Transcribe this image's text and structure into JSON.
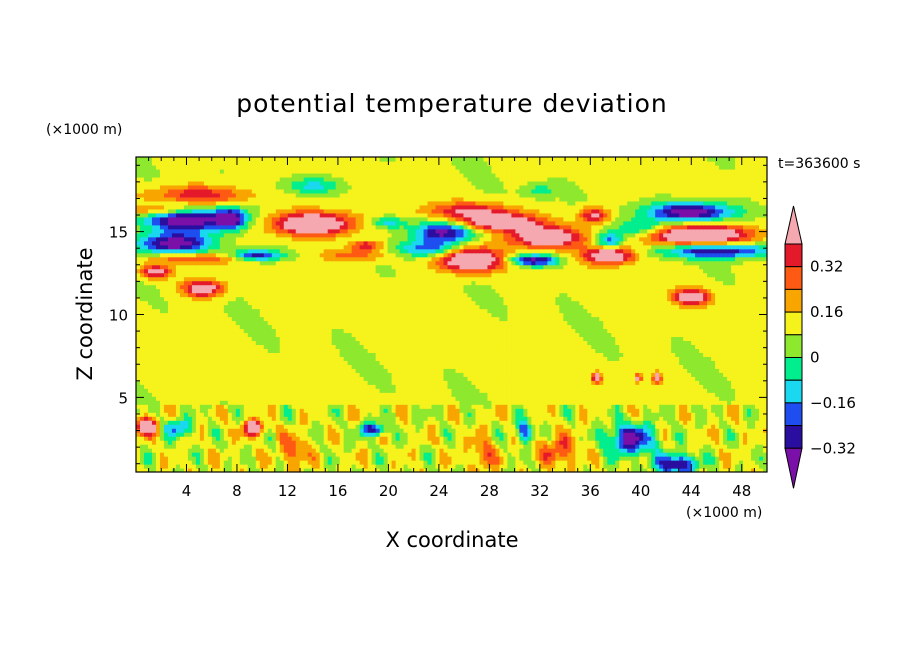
{
  "chart_data": {
    "type": "heatmap",
    "title": "potential temperature deviation",
    "xlabel": "X coordinate",
    "ylabel": "Z coordinate",
    "x_units": "(×1000 m)",
    "y_units": "(×1000 m)",
    "time_label": "t=363600 s",
    "xlim": [
      0,
      50
    ],
    "ylim": [
      0.5,
      19.5
    ],
    "x_ticks": [
      4,
      8,
      12,
      16,
      20,
      24,
      28,
      32,
      36,
      40,
      44,
      48
    ],
    "y_ticks": [
      5,
      10,
      15
    ],
    "colorbar": {
      "levels": [
        -0.4,
        -0.32,
        -0.24,
        -0.16,
        -0.08,
        0,
        0.08,
        0.16,
        0.24,
        0.32,
        0.4
      ],
      "labeled_ticks": [
        "0.32",
        "0.16",
        "0",
        "−0.16",
        "−0.32"
      ],
      "labeled_values": [
        0.32,
        0.16,
        0,
        -0.16,
        -0.32
      ],
      "colors": [
        "#7a10a8",
        "#2a0ea0",
        "#1e4ef0",
        "#19d8f0",
        "#00ee8e",
        "#8ee82e",
        "#f5f21c",
        "#f8a500",
        "#ff5a14",
        "#e4192a",
        "#f5a8b0"
      ]
    },
    "background_value": 0.02,
    "features": [
      {
        "x": 4,
        "z": 15.8,
        "sx": 3.5,
        "sz": 0.8,
        "v": -0.55
      },
      {
        "x": 3,
        "z": 14.3,
        "sx": 3.0,
        "sz": 0.6,
        "v": -0.5
      },
      {
        "x": 5,
        "z": 17.2,
        "sx": 4.0,
        "sz": 0.6,
        "v": 0.3
      },
      {
        "x": 2.5,
        "z": 16.3,
        "sx": 3.0,
        "sz": 0.35,
        "v": 0.3
      },
      {
        "x": 1.5,
        "z": 12.6,
        "sx": 1.2,
        "sz": 0.4,
        "v": 0.4
      },
      {
        "x": 5.3,
        "z": 11.6,
        "sx": 1.6,
        "sz": 0.5,
        "v": 0.45
      },
      {
        "x": 4.8,
        "z": 13.4,
        "sx": 3.5,
        "sz": 0.3,
        "v": 0.25
      },
      {
        "x": 7.5,
        "z": 15.8,
        "sx": 1.2,
        "sz": 0.6,
        "v": -0.4
      },
      {
        "x": 9.5,
        "z": 13.6,
        "sx": 2.0,
        "sz": 0.35,
        "v": -0.4
      },
      {
        "x": 14,
        "z": 15.5,
        "sx": 3.2,
        "sz": 0.7,
        "v": 0.55
      },
      {
        "x": 14,
        "z": 17.8,
        "sx": 2.5,
        "sz": 0.5,
        "v": -0.2
      },
      {
        "x": 17.5,
        "z": 13.6,
        "sx": 2.5,
        "sz": 0.4,
        "v": 0.2
      },
      {
        "x": 20,
        "z": 15.6,
        "sx": 1.4,
        "sz": 0.35,
        "v": -0.25
      },
      {
        "x": 18.3,
        "z": 14.2,
        "sx": 1.2,
        "sz": 0.3,
        "v": 0.3
      },
      {
        "x": 23,
        "z": 14.0,
        "sx": 2.5,
        "sz": 0.5,
        "v": -0.3
      },
      {
        "x": 26.5,
        "z": 16.3,
        "sx": 3.5,
        "sz": 0.5,
        "v": 0.28
      },
      {
        "x": 24.5,
        "z": 15.0,
        "sx": 2.5,
        "sz": 0.6,
        "v": -0.45
      },
      {
        "x": 26.5,
        "z": 13.3,
        "sx": 2.5,
        "sz": 0.7,
        "v": 0.55
      },
      {
        "x": 29,
        "z": 15.6,
        "sx": 3.0,
        "sz": 0.5,
        "v": 0.5
      },
      {
        "x": 31.5,
        "z": 13.3,
        "sx": 2.0,
        "sz": 0.35,
        "v": -0.45
      },
      {
        "x": 32.5,
        "z": 14.7,
        "sx": 2.8,
        "sz": 0.6,
        "v": 0.5
      },
      {
        "x": 32,
        "z": 17.5,
        "sx": 1.2,
        "sz": 0.4,
        "v": -0.15
      },
      {
        "x": 36.3,
        "z": 16.0,
        "sx": 1.2,
        "sz": 0.5,
        "v": 0.35
      },
      {
        "x": 37.5,
        "z": 14.5,
        "sx": 1.0,
        "sz": 0.5,
        "v": -0.3
      },
      {
        "x": 37.5,
        "z": 13.6,
        "sx": 2.0,
        "sz": 0.5,
        "v": 0.5
      },
      {
        "x": 40,
        "z": 15.2,
        "sx": 1.8,
        "sz": 0.5,
        "v": -0.25
      },
      {
        "x": 44,
        "z": 16.2,
        "sx": 3.5,
        "sz": 0.6,
        "v": -0.5
      },
      {
        "x": 44.5,
        "z": 14.8,
        "sx": 4.0,
        "sz": 0.65,
        "v": 0.55
      },
      {
        "x": 46,
        "z": 13.9,
        "sx": 4.5,
        "sz": 0.45,
        "v": -0.45
      },
      {
        "x": 44,
        "z": 11.1,
        "sx": 1.4,
        "sz": 0.45,
        "v": 0.45
      },
      {
        "x": 36.5,
        "z": 6.2,
        "sx": 0.35,
        "sz": 0.3,
        "v": 0.45
      },
      {
        "x": 39.8,
        "z": 6.2,
        "sx": 0.25,
        "sz": 0.25,
        "v": 0.4
      },
      {
        "x": 41.3,
        "z": 6.2,
        "sx": 0.3,
        "sz": 0.3,
        "v": 0.45
      },
      {
        "x": 0.8,
        "z": 3.3,
        "sx": 0.8,
        "sz": 0.5,
        "v": 0.55
      },
      {
        "x": 3.3,
        "z": 3.2,
        "sx": 1.0,
        "sz": 0.5,
        "v": -0.3
      },
      {
        "x": 9.3,
        "z": 3.2,
        "sx": 0.8,
        "sz": 0.45,
        "v": 0.5
      },
      {
        "x": 18.8,
        "z": 3.1,
        "sx": 1.0,
        "sz": 0.4,
        "v": -0.4
      },
      {
        "x": 30.8,
        "z": 3.0,
        "sx": 0.6,
        "sz": 0.6,
        "v": -0.35
      },
      {
        "x": 39.2,
        "z": 2.5,
        "sx": 1.8,
        "sz": 0.9,
        "v": -0.45
      },
      {
        "x": 42.8,
        "z": 1.0,
        "sx": 1.6,
        "sz": 0.6,
        "v": -0.45
      },
      {
        "x": 12.5,
        "z": 1.8,
        "sx": 1.0,
        "sz": 1.0,
        "v": 0.2
      },
      {
        "x": 27.5,
        "z": 1.6,
        "sx": 1.0,
        "sz": 1.0,
        "v": 0.2
      },
      {
        "x": 33.5,
        "z": 1.8,
        "sx": 1.5,
        "sz": 0.9,
        "v": 0.22
      }
    ],
    "noise": {
      "amplitude": 0.08,
      "z_max": 4.5
    }
  }
}
